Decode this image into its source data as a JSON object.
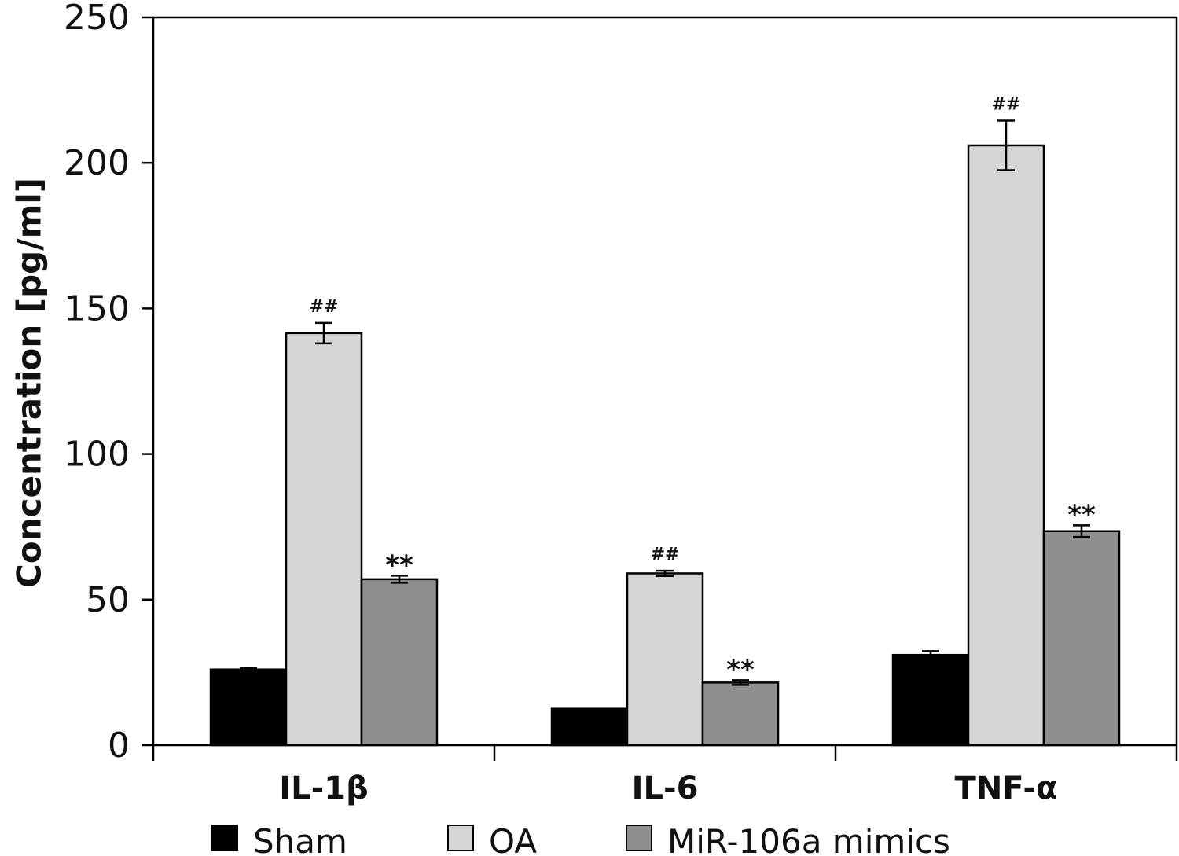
{
  "chart_data": {
    "type": "bar",
    "title": "",
    "xlabel": "",
    "ylabel": "Concentration [pg/ml]",
    "ylim": [
      0,
      250
    ],
    "yticks": [
      "0",
      "50",
      "100",
      "150",
      "200",
      "250"
    ],
    "categories": [
      "IL-1β",
      "IL-6",
      "TNF-α"
    ],
    "series": [
      {
        "name": "Sham",
        "color": "#000000",
        "values": [
          26,
          12.5,
          31
        ],
        "errors": [
          0.6,
          0,
          1.3
        ],
        "annotations": [
          "",
          "",
          ""
        ]
      },
      {
        "name": "OA",
        "color": "#d6d6d6",
        "values": [
          141.5,
          59,
          206
        ],
        "errors": [
          3.5,
          0.9,
          8.5
        ],
        "annotations": [
          "##",
          "##",
          "##"
        ]
      },
      {
        "name": "MiR-106a mimics",
        "color": "#8f8f8f",
        "values": [
          57,
          21.5,
          73.5
        ],
        "errors": [
          1.2,
          0.8,
          2.0
        ],
        "annotations": [
          "**",
          "**",
          "**"
        ]
      }
    ],
    "grid": false,
    "legend_position": "bottom"
  }
}
